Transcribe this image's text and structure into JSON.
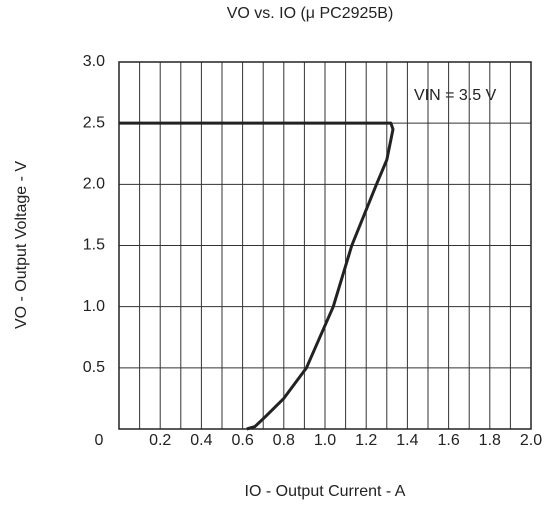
{
  "chart_data": {
    "type": "line",
    "title": "VO vs. IO (μ PC2925B)",
    "x_label": "IO - Output Current - A",
    "y_label": "VO - Output Voltage - V",
    "annotation": "VIN = 3.5 V",
    "x": [
      0,
      1.32,
      1.33,
      1.3,
      1.25,
      1.13,
      1.04,
      0.91,
      0.8,
      0.71,
      0.66,
      0.62
    ],
    "series": [
      {
        "name": "VIN = 3.5 V",
        "color": "#222222",
        "values": [
          2.5,
          2.5,
          2.45,
          2.2,
          2.0,
          1.5,
          1.0,
          0.5,
          0.25,
          0.1,
          0.02,
          0
        ]
      }
    ],
    "xlim": [
      0,
      2.0
    ],
    "ylim": [
      0,
      3.0
    ],
    "xticks": [
      0,
      {
        "value": 0.2,
        "label": "0.2"
      },
      {
        "value": 0.4,
        "label": "0.4"
      },
      {
        "value": 0.6,
        "label": "0.6"
      },
      {
        "value": 0.8,
        "label": "0.8"
      },
      {
        "value": 1.0,
        "label": "1.0"
      },
      {
        "value": 1.2,
        "label": "1.2"
      },
      {
        "value": 1.4,
        "label": "1.4"
      },
      {
        "value": 1.6,
        "label": "1.6"
      },
      {
        "value": 1.8,
        "label": "1.8"
      },
      {
        "value": 2.0,
        "label": "2.0"
      }
    ],
    "xminor": [
      0.1,
      0.3,
      0.5,
      0.7,
      0.9,
      1.1,
      1.3,
      1.5,
      1.7,
      1.9
    ],
    "yticks": [
      {
        "value": 0.5,
        "label": "0.5"
      },
      {
        "value": 1.0,
        "label": "1.0"
      },
      {
        "value": 1.5,
        "label": "1.5"
      },
      {
        "value": 2.0,
        "label": "2.0"
      },
      {
        "value": 2.5,
        "label": "2.5"
      },
      {
        "value": 3.0,
        "label": "3.0"
      }
    ],
    "grid": true
  }
}
